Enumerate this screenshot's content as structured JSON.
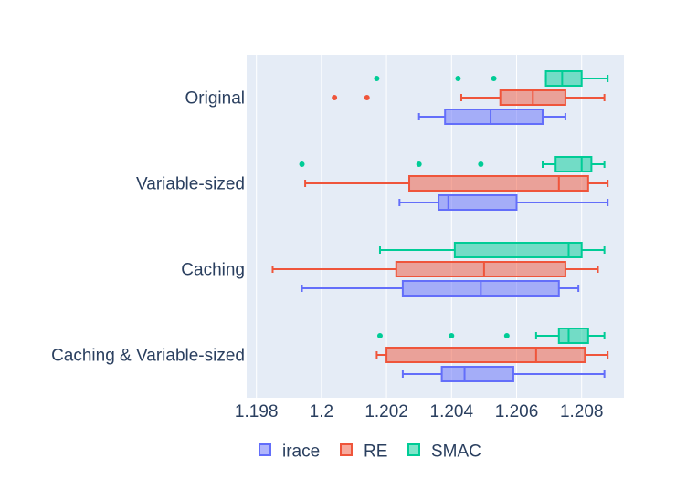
{
  "chart_data": {
    "type": "box",
    "orientation": "horizontal",
    "title": "",
    "xlabel": "",
    "ylabel": "",
    "xlim": [
      1.1977,
      1.2093
    ],
    "xticks": [
      1.198,
      1.2,
      1.202,
      1.204,
      1.206,
      1.208
    ],
    "xtick_labels": [
      "1.198",
      "1.2",
      "1.202",
      "1.204",
      "1.206",
      "1.208"
    ],
    "grid": true,
    "legend_position": "bottom",
    "categories": [
      "Original",
      "Variable-sized",
      "Caching",
      "Caching & Variable-sized"
    ],
    "series": [
      {
        "name": "irace",
        "color": "#636efa",
        "boxes": [
          {
            "min": 1.203,
            "q1": 1.2038,
            "median": 1.2052,
            "q3": 1.2068,
            "max": 1.2075,
            "outliers": []
          },
          {
            "min": 1.2024,
            "q1": 1.2036,
            "median": 1.2039,
            "q3": 1.206,
            "max": 1.2088,
            "outliers": []
          },
          {
            "min": 1.1994,
            "q1": 1.2025,
            "median": 1.2049,
            "q3": 1.2073,
            "max": 1.2079,
            "outliers": []
          },
          {
            "min": 1.2025,
            "q1": 1.2037,
            "median": 1.2044,
            "q3": 1.2059,
            "max": 1.2087,
            "outliers": []
          }
        ]
      },
      {
        "name": "RE",
        "color": "#ef553b",
        "boxes": [
          {
            "min": 1.2043,
            "q1": 1.2055,
            "median": 1.2065,
            "q3": 1.2075,
            "max": 1.2087,
            "outliers": [
              1.2004,
              1.2014
            ]
          },
          {
            "min": 1.1995,
            "q1": 1.2027,
            "median": 1.2073,
            "q3": 1.2082,
            "max": 1.2088,
            "outliers": []
          },
          {
            "min": 1.1985,
            "q1": 1.2023,
            "median": 1.205,
            "q3": 1.2075,
            "max": 1.2085,
            "outliers": []
          },
          {
            "min": 1.2017,
            "q1": 1.202,
            "median": 1.2066,
            "q3": 1.2081,
            "max": 1.2088,
            "outliers": []
          }
        ]
      },
      {
        "name": "SMAC",
        "color": "#00cc96",
        "boxes": [
          {
            "min": 1.2069,
            "q1": 1.2069,
            "median": 1.2074,
            "q3": 1.208,
            "max": 1.2088,
            "outliers": [
              1.2017,
              1.2042,
              1.2053
            ]
          },
          {
            "min": 1.2068,
            "q1": 1.2072,
            "median": 1.208,
            "q3": 1.2083,
            "max": 1.2087,
            "outliers": [
              1.1994,
              1.203,
              1.2049
            ]
          },
          {
            "min": 1.2018,
            "q1": 1.2041,
            "median": 1.2076,
            "q3": 1.208,
            "max": 1.2087,
            "outliers": []
          },
          {
            "min": 1.2066,
            "q1": 1.2073,
            "median": 1.2076,
            "q3": 1.2082,
            "max": 1.2087,
            "outliers": [
              1.2018,
              1.204,
              1.2057
            ]
          }
        ]
      }
    ]
  }
}
